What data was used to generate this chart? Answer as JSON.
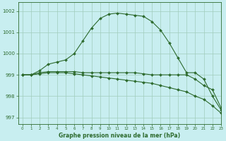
{
  "xlabel": "Graphe pression niveau de la mer (hPa)",
  "xlim": [
    -0.5,
    23
  ],
  "ylim": [
    996.7,
    1002.4
  ],
  "yticks": [
    997,
    998,
    999,
    1000,
    1001,
    1002
  ],
  "xticks": [
    0,
    1,
    2,
    3,
    4,
    5,
    6,
    7,
    8,
    9,
    10,
    11,
    12,
    13,
    14,
    15,
    16,
    17,
    18,
    19,
    20,
    21,
    22,
    23
  ],
  "background_color": "#c8eef0",
  "grid_color": "#a0ccbb",
  "line_color": "#2d6a2d",
  "line1_x": [
    0,
    1,
    2,
    3,
    4,
    5,
    6,
    7,
    8,
    9,
    10,
    11,
    12,
    13,
    14,
    15,
    16,
    17,
    18,
    19,
    20,
    21,
    22,
    23
  ],
  "line1_y": [
    999.0,
    999.0,
    999.2,
    999.5,
    999.6,
    999.7,
    1000.0,
    1000.6,
    1001.2,
    1001.65,
    1001.85,
    1001.9,
    1001.85,
    1001.8,
    1001.75,
    1001.5,
    1001.1,
    1000.5,
    999.8,
    999.1,
    999.1,
    998.8,
    998.0,
    997.35
  ],
  "line2_x": [
    0,
    1,
    2,
    3,
    4,
    5,
    6,
    7,
    8,
    9,
    10,
    11,
    12,
    13,
    14,
    15,
    16,
    17,
    18,
    19,
    20,
    21,
    22,
    23
  ],
  "line2_y": [
    999.0,
    999.0,
    999.1,
    999.15,
    999.15,
    999.15,
    999.15,
    999.1,
    999.1,
    999.1,
    999.1,
    999.1,
    999.1,
    999.1,
    999.05,
    999.0,
    999.0,
    999.0,
    999.0,
    999.0,
    998.8,
    998.5,
    998.3,
    997.45
  ],
  "line3_x": [
    0,
    1,
    2,
    3,
    4,
    5,
    6,
    7,
    8,
    9,
    10,
    11,
    12,
    13,
    14,
    15,
    16,
    17,
    18,
    19,
    20,
    21,
    22,
    23
  ],
  "line3_y": [
    999.0,
    999.0,
    999.05,
    999.1,
    999.1,
    999.1,
    999.05,
    999.0,
    998.95,
    998.9,
    998.85,
    998.8,
    998.75,
    998.7,
    998.65,
    998.6,
    998.5,
    998.4,
    998.3,
    998.2,
    998.0,
    997.85,
    997.55,
    997.2
  ]
}
